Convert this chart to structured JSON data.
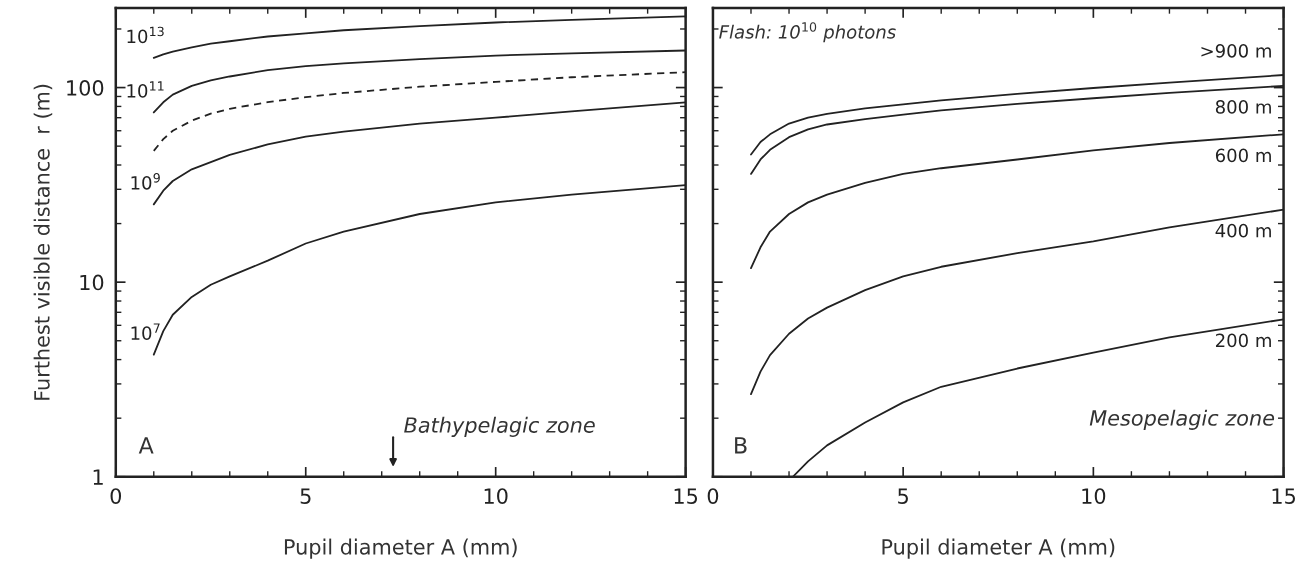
{
  "chart_data": [
    {
      "type": "line",
      "xlabel": "Pupil diameter A (mm)",
      "ylabel": "Furthest visible distance  r (m)",
      "log": "y",
      "xlim": [
        0,
        15
      ],
      "xticks": [
        0,
        5,
        10,
        15
      ],
      "ylim": [
        1,
        256
      ],
      "yticks": [
        1,
        10,
        100
      ],
      "grid": false,
      "series": [
        {
          "name": "10$^{13}$",
          "color": "#222222",
          "line_style": "solid",
          "x": [
            1,
            1.25,
            1.5,
            2,
            2.5,
            3,
            4,
            5,
            6,
            8,
            10,
            12,
            15
          ],
          "values": [
            142,
            148,
            153,
            161,
            168,
            173,
            183,
            190,
            197,
            207,
            216,
            223,
            232
          ]
        },
        {
          "name": "10$^{11}$",
          "color": "#222222",
          "line_style": "solid",
          "x": [
            1,
            1.25,
            1.5,
            2,
            2.5,
            3,
            4,
            5,
            6,
            8,
            10,
            12,
            15
          ],
          "values": [
            74.5,
            84,
            92,
            102,
            109,
            114,
            123,
            129,
            133,
            140,
            146,
            150,
            155
          ]
        },
        {
          "color": "#222222",
          "line_style": "dashed",
          "x": [
            1,
            1.25,
            1.5,
            2,
            2.5,
            3,
            4,
            5,
            6,
            8,
            10,
            12,
            15
          ],
          "values": [
            47.3,
            54.3,
            60,
            67.6,
            73.5,
            77.8,
            84.1,
            89.3,
            93.8,
            101,
            107,
            113,
            120
          ]
        },
        {
          "name": "10$^{9}$",
          "color": "#222222",
          "line_style": "solid",
          "x": [
            1,
            1.25,
            1.5,
            2,
            2.5,
            3,
            4,
            5,
            6,
            8,
            10,
            12,
            15
          ],
          "values": [
            25.1,
            29.5,
            33.1,
            38,
            41.4,
            45.1,
            51,
            56,
            59.4,
            65.2,
            70,
            75.5,
            84
          ]
        },
        {
          "name": "10$^{7}$",
          "color": "#222222",
          "line_style": "solid",
          "x": [
            1,
            1.25,
            1.5,
            2,
            2.5,
            3,
            4,
            5,
            6,
            8,
            10,
            12,
            15
          ],
          "values": [
            4.24,
            5.6,
            6.8,
            8.4,
            9.7,
            10.7,
            12.9,
            15.8,
            18.2,
            22.4,
            25.7,
            28.2,
            31.5
          ]
        }
      ],
      "annotations": [
        "A",
        "Bathypelagic zone"
      ]
    },
    {
      "type": "line",
      "xlabel": "Pupil diameter A (mm)",
      "log": "y",
      "xlim": [
        0,
        15
      ],
      "xticks": [
        0,
        5,
        10,
        15
      ],
      "ylim": [
        1,
        256
      ],
      "yticks": [
        {
          "value": 1,
          "label": null
        },
        {
          "value": 10,
          "label": null
        },
        {
          "value": 100,
          "label": null
        }
      ],
      "tick_labels": "x",
      "grid": false,
      "legend": "right",
      "series": [
        {
          "name": ">900 m",
          "color": "#222222",
          "line_style": "solid",
          "x": [
            1,
            1.25,
            1.5,
            2,
            2.5,
            3,
            4,
            5,
            6,
            8,
            10,
            12,
            15
          ],
          "values": [
            45.3,
            52.5,
            57.5,
            65.3,
            70,
            73.3,
            78.2,
            82,
            86,
            92.9,
            99.5,
            106,
            116
          ]
        },
        {
          "name": "800 m",
          "color": "#222222",
          "line_style": "solid",
          "x": [
            1,
            1.25,
            1.5,
            2,
            2.5,
            3,
            4,
            5,
            6,
            8,
            10,
            12,
            15
          ],
          "values": [
            36,
            42.7,
            47.9,
            55.6,
            61,
            64.6,
            68.9,
            72.6,
            76.4,
            82.4,
            88.1,
            93.8,
            102
          ]
        },
        {
          "name": "600 m",
          "color": "#222222",
          "line_style": "solid",
          "x": [
            1,
            1.25,
            1.5,
            2,
            2.5,
            3,
            4,
            5,
            6,
            8,
            10,
            12,
            15
          ],
          "values": [
            11.8,
            15.1,
            18.2,
            22.4,
            25.7,
            28.2,
            32.4,
            36,
            38.5,
            42.7,
            47.5,
            51.9,
            57.5
          ]
        },
        {
          "name": "400 m",
          "color": "#222222",
          "line_style": "solid",
          "x": [
            1,
            1.25,
            1.5,
            2,
            2.5,
            3,
            4,
            5,
            6,
            8,
            10,
            12,
            15
          ],
          "values": [
            2.66,
            3.47,
            4.22,
            5.43,
            6.5,
            7.4,
            9.1,
            10.7,
            12,
            14.1,
            16.2,
            19.1,
            23.6
          ]
        },
        {
          "name": "200 m",
          "color": "#222222",
          "line_style": "solid",
          "x": [
            2.1,
            2.5,
            3,
            4,
            5,
            6,
            8,
            10,
            12,
            15
          ],
          "values": [
            1.0,
            1.2,
            1.45,
            1.9,
            2.41,
            2.9,
            3.6,
            4.35,
            5.2,
            6.44
          ]
        }
      ],
      "annotations": [
        "B",
        "Flash: 10$^{10}$ photons",
        "Mesopelagic zone"
      ]
    }
  ]
}
